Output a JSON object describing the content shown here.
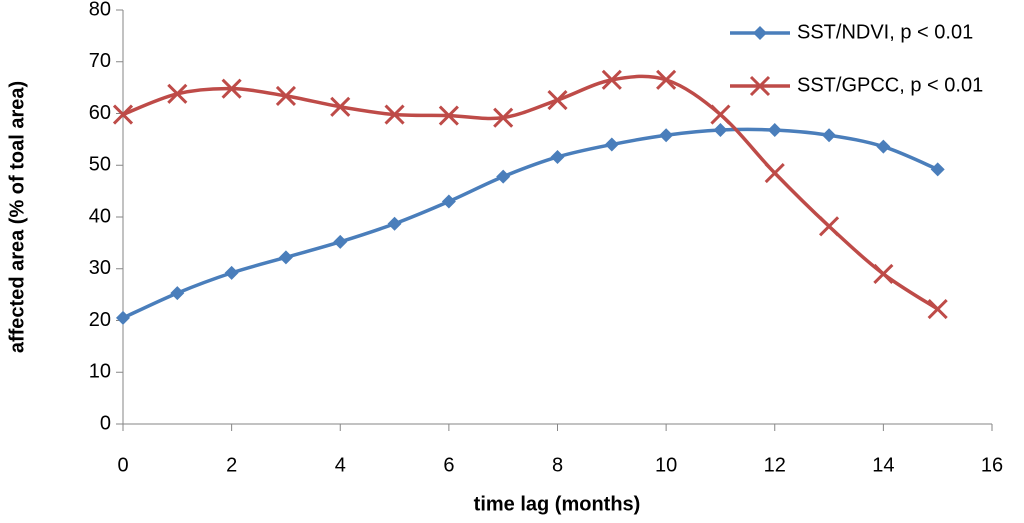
{
  "chart_data": {
    "type": "line",
    "x_label": "time lag (months)",
    "y_label": "affected area (% of toal area)",
    "x": [
      0,
      1,
      2,
      3,
      4,
      5,
      6,
      7,
      8,
      9,
      10,
      11,
      12,
      13,
      14,
      15
    ],
    "series": [
      {
        "name": "SST/NDVI, p < 0.01",
        "color": "#4a7ebb",
        "marker": "diamond",
        "values": [
          20.5,
          25.3,
          29.2,
          32.2,
          35.2,
          38.7,
          43,
          47.8,
          51.6,
          54,
          55.8,
          56.8,
          56.8,
          55.8,
          53.6,
          49.2
        ]
      },
      {
        "name": "SST/GPCC, p < 0.01",
        "color": "#be4b48",
        "marker": "x",
        "values": [
          59.8,
          63.8,
          64.8,
          63.4,
          61.3,
          59.8,
          59.6,
          59.2,
          62.6,
          66.5,
          66.5,
          59.8,
          48.5,
          38.2,
          29,
          22.2
        ]
      }
    ],
    "xlim": [
      0,
      16
    ],
    "xticks": [
      0,
      2,
      4,
      6,
      8,
      10,
      12,
      14,
      16
    ],
    "ylim": [
      0,
      80
    ],
    "yticks": [
      0,
      10,
      20,
      30,
      40,
      50,
      60,
      70,
      80
    ],
    "grid": false,
    "smooth": true,
    "legend": "top-right"
  }
}
